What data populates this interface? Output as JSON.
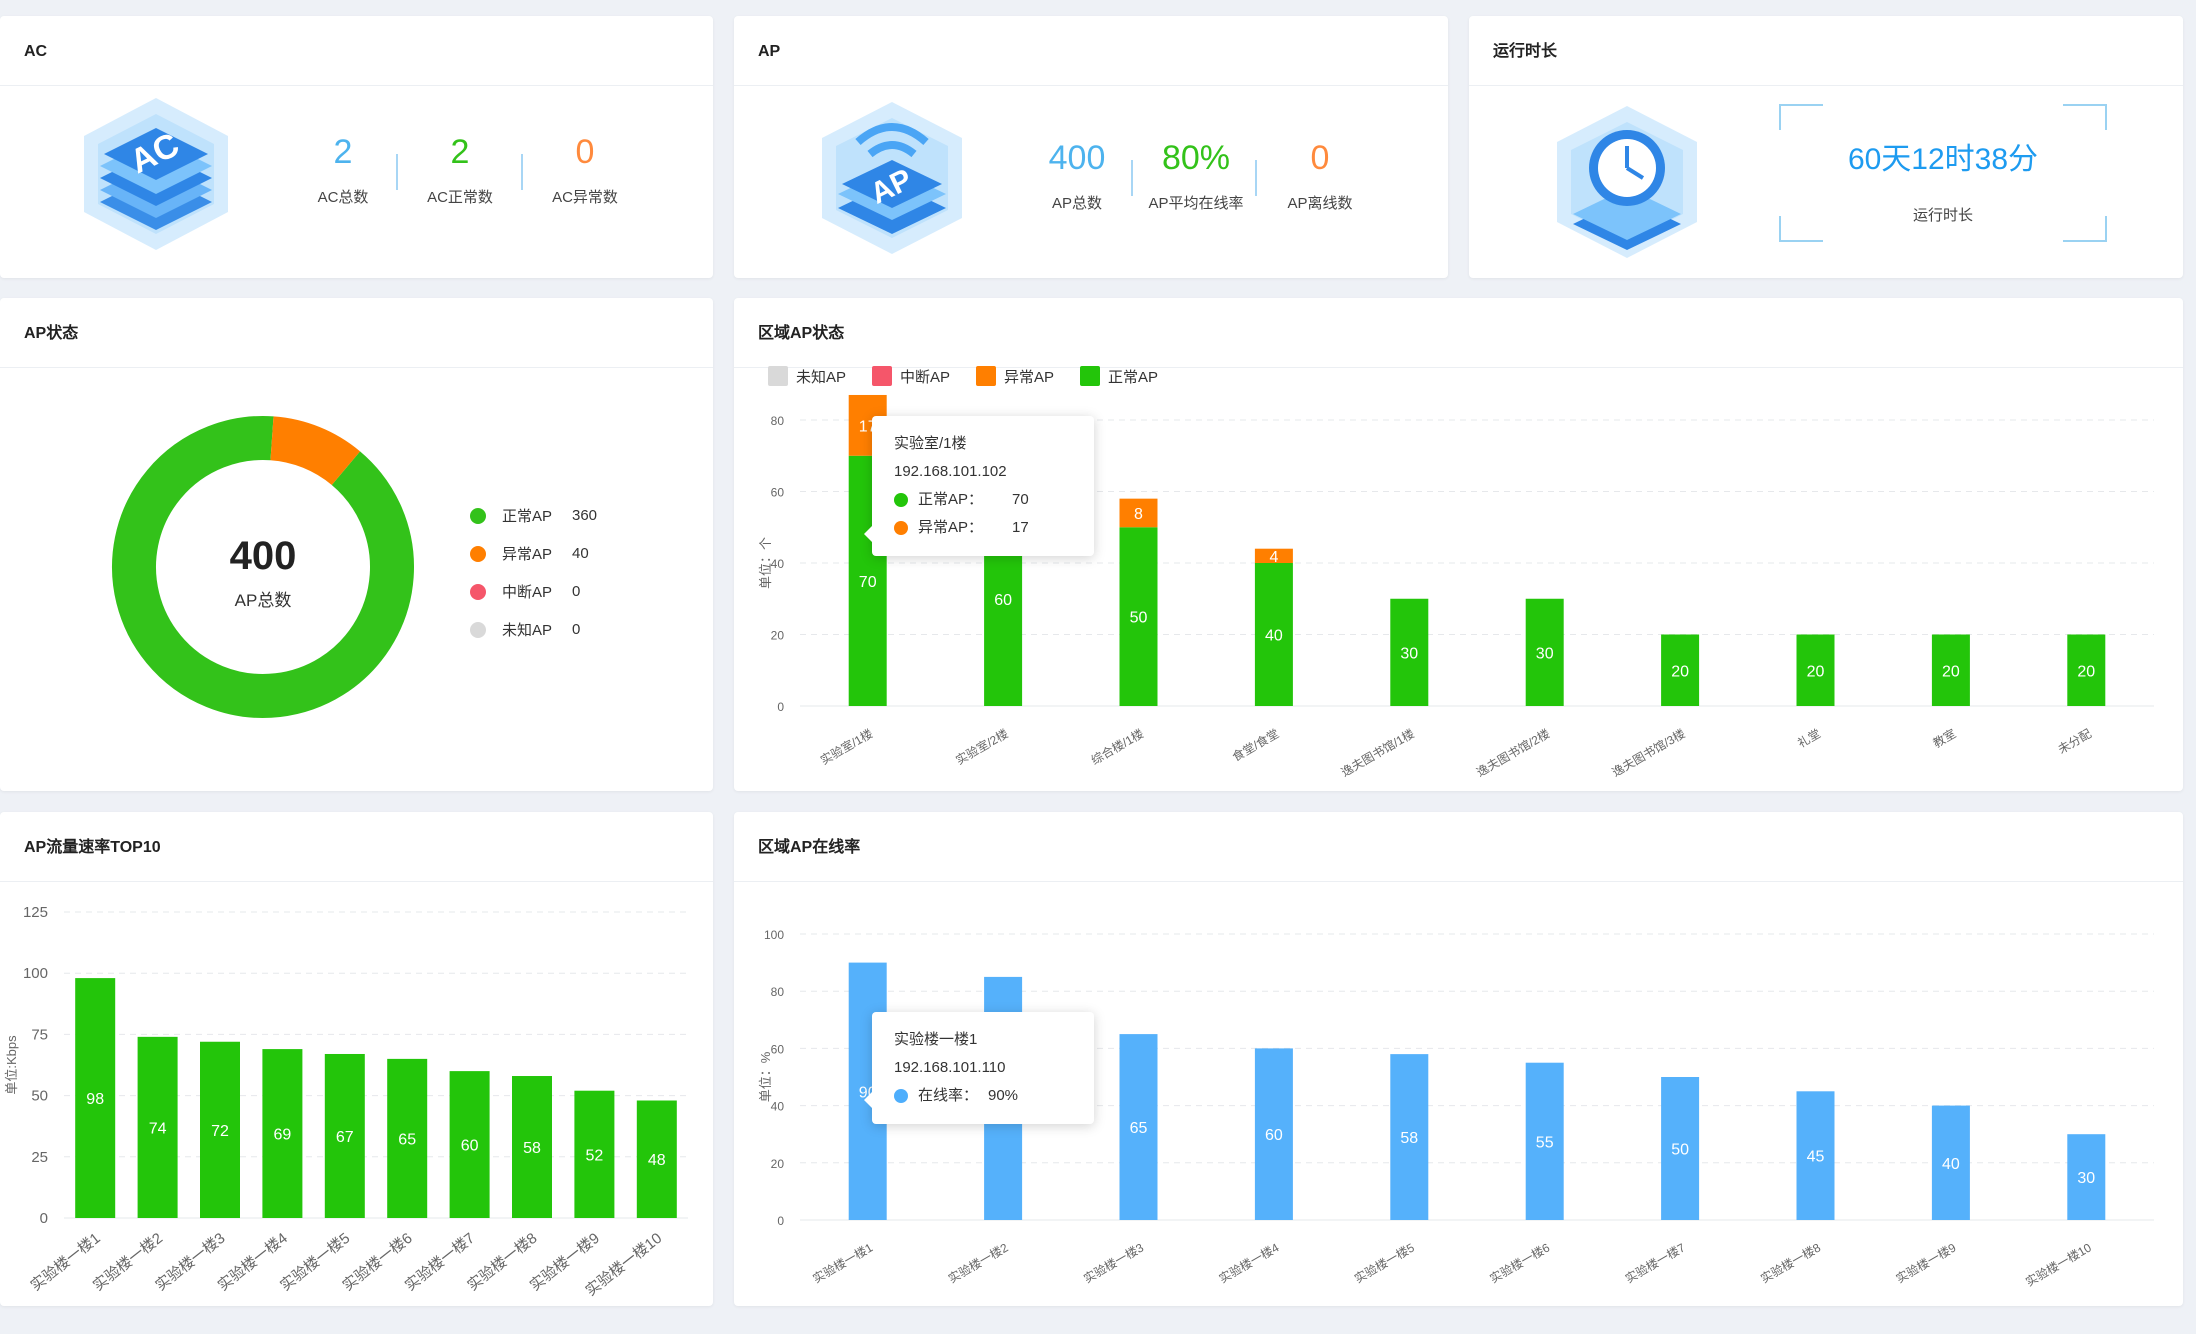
{
  "ac_card": {
    "title": "AC",
    "icon": "ac-device-icon",
    "stats": [
      {
        "value": "2",
        "label": "AC总数",
        "color": "#4db3ee"
      },
      {
        "value": "2",
        "label": "AC正常数",
        "color": "#33c21a"
      },
      {
        "value": "0",
        "label": "AC异常数",
        "color": "#ff8a3d"
      }
    ]
  },
  "ap_card": {
    "title": "AP",
    "icon": "ap-wifi-icon",
    "stats": [
      {
        "value": "400",
        "label": "AP总数",
        "color": "#4db3ee"
      },
      {
        "value": "80%",
        "label": "AP平均在线率",
        "color": "#33c21a"
      },
      {
        "value": "0",
        "label": "AP离线数",
        "color": "#ff8a3d"
      }
    ]
  },
  "uptime_card": {
    "title": "运行时长",
    "icon": "clock-icon",
    "value": "60天12时38分",
    "label": "运行时长"
  },
  "ap_status": {
    "title": "AP状态",
    "center_value": "400",
    "center_label": "AP总数",
    "chart_data": {
      "type": "pie",
      "donut": true,
      "total": 400,
      "slices": [
        {
          "name": "正常AP",
          "value": 360,
          "color": "#33c21a"
        },
        {
          "name": "异常AP",
          "value": 40,
          "color": "#ff7f00"
        },
        {
          "name": "中断AP",
          "value": 0,
          "color": "#f5566a"
        },
        {
          "name": "未知AP",
          "value": 0,
          "color": "#d9d9d9"
        }
      ]
    }
  },
  "region_status": {
    "title": "区域AP状态",
    "legend": [
      {
        "name": "未知AP",
        "color": "#d9d9d9"
      },
      {
        "name": "中断AP",
        "color": "#f5566a"
      },
      {
        "name": "异常AP",
        "color": "#ff7f00"
      },
      {
        "name": "正常AP",
        "color": "#23c50a"
      }
    ],
    "ylabel": "单位：个",
    "tooltip": {
      "title": "实验室/1楼",
      "ip": "192.168.101.102",
      "rows": [
        {
          "name": "正常AP：",
          "value": "70",
          "color": "#23c50a"
        },
        {
          "name": "异常AP：",
          "value": "17",
          "color": "#ff7f00"
        }
      ]
    },
    "chart_data": {
      "type": "bar",
      "stacked": true,
      "categories": [
        "实验室/1楼",
        "实验室/2楼",
        "综合楼/1楼",
        "食堂/食堂",
        "逸夫图书馆/1楼",
        "逸夫图书馆/2楼",
        "逸夫图书馆/3楼",
        "礼堂",
        "教室",
        "未分配"
      ],
      "series": [
        {
          "name": "正常AP",
          "values": [
            70,
            60,
            50,
            40,
            30,
            30,
            20,
            20,
            20,
            20
          ],
          "color": "#23c50a"
        },
        {
          "name": "异常AP",
          "values": [
            17,
            0,
            8,
            4,
            0,
            0,
            0,
            0,
            0,
            0
          ],
          "color": "#ff7f00"
        }
      ],
      "ylim": [
        0,
        80
      ],
      "yticks": [
        0,
        20,
        40,
        60,
        80
      ],
      "ylabel": "单位：个",
      "grid": true
    }
  },
  "traffic_top10": {
    "title": "AP流量速率TOP10",
    "ylabel": "单位:Kbps",
    "chart_data": {
      "type": "bar",
      "categories": [
        "实验楼一楼1",
        "实验楼一楼2",
        "实验楼一楼3",
        "实验楼一楼4",
        "实验楼一楼5",
        "实验楼一楼6",
        "实验楼一楼7",
        "实验楼一楼8",
        "实验楼一楼9",
        "实验楼一楼10"
      ],
      "values": [
        98,
        74,
        72,
        69,
        67,
        65,
        60,
        58,
        52,
        48
      ],
      "color": "#23c50a",
      "ylim": [
        0,
        125
      ],
      "yticks": [
        0,
        25,
        50,
        75,
        100,
        125
      ],
      "ylabel": "单位:Kbps",
      "grid": true
    }
  },
  "region_online": {
    "title": "区域AP在线率",
    "ylabel": "单位：%",
    "tooltip": {
      "title": "实验楼一楼1",
      "ip": "192.168.101.110",
      "rows": [
        {
          "name": "在线率：",
          "value": "90%",
          "color": "#4eaefc"
        }
      ]
    },
    "chart_data": {
      "type": "bar",
      "categories": [
        "实验楼一楼1",
        "实验楼一楼2",
        "实验楼一楼3",
        "实验楼一楼4",
        "实验楼一楼5",
        "实验楼一楼6",
        "实验楼一楼7",
        "实验楼一楼8",
        "实验楼一楼9",
        "实验楼一楼10"
      ],
      "values": [
        90,
        85,
        65,
        60,
        58,
        55,
        50,
        45,
        40,
        30
      ],
      "color": "#55b1fb",
      "ylim": [
        0,
        100
      ],
      "yticks": [
        0,
        20,
        40,
        60,
        80,
        100
      ],
      "ylabel": "单位：%",
      "grid": true
    }
  }
}
